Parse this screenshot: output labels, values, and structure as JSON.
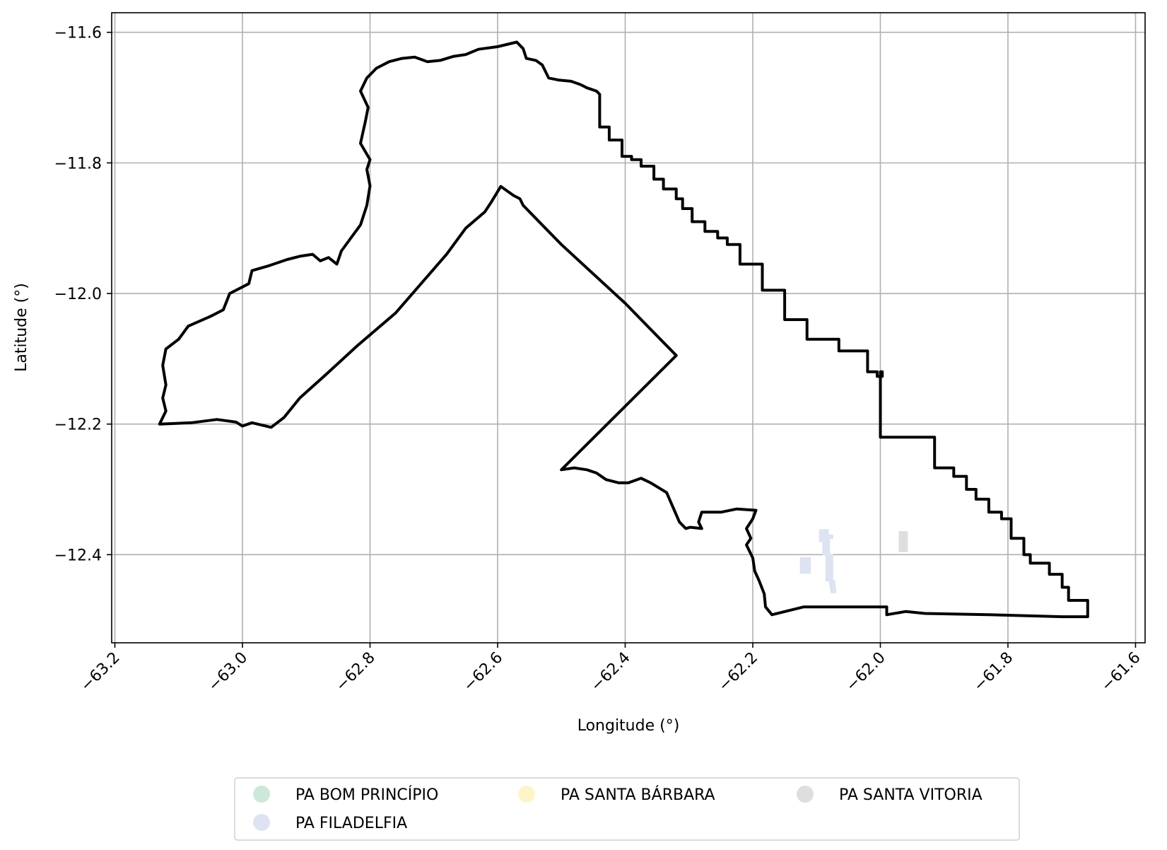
{
  "chart_data": {
    "type": "map",
    "xlabel": "Longitude (°)",
    "ylabel": "Latitude (°)",
    "xlim": [
      -63.205,
      -61.585
    ],
    "ylim": [
      -12.535,
      -11.57
    ],
    "grid": true,
    "x_ticks": [
      -63.2,
      -63.0,
      -62.8,
      -62.6,
      -62.4,
      -62.2,
      -62.0,
      -61.8,
      -61.6
    ],
    "x_tick_labels": [
      "−63.2",
      "−63.0",
      "−62.8",
      "−62.6",
      "−62.4",
      "−62.2",
      "−62.0",
      "−61.8",
      "−61.6"
    ],
    "y_ticks": [
      -11.6,
      -11.8,
      -12.0,
      -12.2,
      -12.4
    ],
    "y_tick_labels": [
      "−11.6",
      "−11.8",
      "−12.0",
      "−12.2",
      "−12.4"
    ],
    "boundary_color": "#000000",
    "boundary": [
      [
        -63.13,
        -12.2
      ],
      [
        -63.12,
        -12.18
      ],
      [
        -63.125,
        -12.16
      ],
      [
        -63.12,
        -12.14
      ],
      [
        -63.125,
        -12.11
      ],
      [
        -63.12,
        -12.085
      ],
      [
        -63.1,
        -12.07
      ],
      [
        -63.085,
        -12.05
      ],
      [
        -63.05,
        -12.035
      ],
      [
        -63.03,
        -12.025
      ],
      [
        -63.02,
        -12.0
      ],
      [
        -62.99,
        -11.985
      ],
      [
        -62.985,
        -11.965
      ],
      [
        -62.96,
        -11.958
      ],
      [
        -62.93,
        -11.948
      ],
      [
        -62.91,
        -11.943
      ],
      [
        -62.89,
        -11.94
      ],
      [
        -62.878,
        -11.95
      ],
      [
        -62.865,
        -11.945
      ],
      [
        -62.852,
        -11.955
      ],
      [
        -62.845,
        -11.935
      ],
      [
        -62.83,
        -11.915
      ],
      [
        -62.815,
        -11.895
      ],
      [
        -62.805,
        -11.865
      ],
      [
        -62.8,
        -11.835
      ],
      [
        -62.805,
        -11.81
      ],
      [
        -62.8,
        -11.795
      ],
      [
        -62.815,
        -11.77
      ],
      [
        -62.807,
        -11.735
      ],
      [
        -62.803,
        -11.715
      ],
      [
        -62.815,
        -11.69
      ],
      [
        -62.805,
        -11.67
      ],
      [
        -62.79,
        -11.655
      ],
      [
        -62.77,
        -11.645
      ],
      [
        -62.75,
        -11.64
      ],
      [
        -62.73,
        -11.638
      ],
      [
        -62.71,
        -11.645
      ],
      [
        -62.69,
        -11.643
      ],
      [
        -62.67,
        -11.637
      ],
      [
        -62.65,
        -11.634
      ],
      [
        -62.63,
        -11.626
      ],
      [
        -62.6,
        -11.622
      ],
      [
        -62.57,
        -11.615
      ],
      [
        -62.56,
        -11.625
      ],
      [
        -62.555,
        -11.64
      ],
      [
        -62.54,
        -11.643
      ],
      [
        -62.53,
        -11.65
      ],
      [
        -62.52,
        -11.67
      ],
      [
        -62.505,
        -11.673
      ],
      [
        -62.485,
        -11.675
      ],
      [
        -62.47,
        -11.68
      ],
      [
        -62.46,
        -11.685
      ],
      [
        -62.445,
        -11.69
      ],
      [
        -62.44,
        -11.695
      ],
      [
        -62.44,
        -11.745
      ],
      [
        -62.425,
        -11.745
      ],
      [
        -62.425,
        -11.765
      ],
      [
        -62.405,
        -11.765
      ],
      [
        -62.405,
        -11.79
      ],
      [
        -62.39,
        -11.79
      ],
      [
        -62.39,
        -11.795
      ],
      [
        -62.375,
        -11.795
      ],
      [
        -62.375,
        -11.805
      ],
      [
        -62.355,
        -11.805
      ],
      [
        -62.355,
        -11.825
      ],
      [
        -62.34,
        -11.825
      ],
      [
        -62.34,
        -11.84
      ],
      [
        -62.32,
        -11.84
      ],
      [
        -62.32,
        -11.855
      ],
      [
        -62.31,
        -11.855
      ],
      [
        -62.31,
        -11.87
      ],
      [
        -62.295,
        -11.87
      ],
      [
        -62.295,
        -11.89
      ],
      [
        -62.275,
        -11.89
      ],
      [
        -62.275,
        -11.905
      ],
      [
        -62.255,
        -11.905
      ],
      [
        -62.255,
        -11.915
      ],
      [
        -62.24,
        -11.915
      ],
      [
        -62.24,
        -11.925
      ],
      [
        -62.22,
        -11.925
      ],
      [
        -62.22,
        -11.955
      ],
      [
        -62.185,
        -11.955
      ],
      [
        -62.185,
        -11.995
      ],
      [
        -62.15,
        -11.995
      ],
      [
        -62.15,
        -12.04
      ],
      [
        -62.115,
        -12.04
      ],
      [
        -62.115,
        -12.07
      ],
      [
        -62.065,
        -12.07
      ],
      [
        -62.065,
        -12.088
      ],
      [
        -62.02,
        -12.088
      ],
      [
        -62.02,
        -12.12
      ],
      [
        -62.005,
        -12.12
      ],
      [
        -62.005,
        -12.127
      ],
      [
        -61.997,
        -12.127
      ],
      [
        -61.997,
        -12.12
      ],
      [
        -62.0,
        -12.12
      ],
      [
        -62.0,
        -12.22
      ],
      [
        -61.915,
        -12.22
      ],
      [
        -61.915,
        -12.267
      ],
      [
        -61.885,
        -12.267
      ],
      [
        -61.885,
        -12.28
      ],
      [
        -61.865,
        -12.28
      ],
      [
        -61.865,
        -12.3
      ],
      [
        -61.85,
        -12.3
      ],
      [
        -61.85,
        -12.315
      ],
      [
        -61.83,
        -12.315
      ],
      [
        -61.83,
        -12.335
      ],
      [
        -61.81,
        -12.335
      ],
      [
        -61.81,
        -12.345
      ],
      [
        -61.795,
        -12.345
      ],
      [
        -61.795,
        -12.375
      ],
      [
        -61.775,
        -12.375
      ],
      [
        -61.775,
        -12.4
      ],
      [
        -61.765,
        -12.4
      ],
      [
        -61.765,
        -12.413
      ],
      [
        -61.735,
        -12.413
      ],
      [
        -61.735,
        -12.43
      ],
      [
        -61.715,
        -12.43
      ],
      [
        -61.715,
        -12.45
      ],
      [
        -61.705,
        -12.45
      ],
      [
        -61.705,
        -12.47
      ],
      [
        -61.675,
        -12.47
      ],
      [
        -61.675,
        -12.495
      ],
      [
        -61.715,
        -12.495
      ],
      [
        -61.83,
        -12.492
      ],
      [
        -61.93,
        -12.49
      ],
      [
        -61.96,
        -12.487
      ],
      [
        -61.99,
        -12.492
      ],
      [
        -61.99,
        -12.48
      ],
      [
        -62.12,
        -12.48
      ],
      [
        -62.17,
        -12.492
      ],
      [
        -62.18,
        -12.48
      ],
      [
        -62.182,
        -12.46
      ],
      [
        -62.19,
        -12.44
      ],
      [
        -62.197,
        -12.425
      ],
      [
        -62.2,
        -12.405
      ],
      [
        -62.21,
        -12.385
      ],
      [
        -62.203,
        -12.375
      ],
      [
        -62.21,
        -12.36
      ],
      [
        -62.2,
        -12.345
      ],
      [
        -62.195,
        -12.332
      ],
      [
        -62.225,
        -12.33
      ],
      [
        -62.25,
        -12.335
      ],
      [
        -62.28,
        -12.335
      ],
      [
        -62.285,
        -12.35
      ],
      [
        -62.28,
        -12.36
      ],
      [
        -62.298,
        -12.358
      ],
      [
        -62.305,
        -12.36
      ],
      [
        -62.315,
        -12.35
      ],
      [
        -62.335,
        -12.305
      ],
      [
        -62.36,
        -12.29
      ],
      [
        -62.375,
        -12.283
      ],
      [
        -62.395,
        -12.29
      ],
      [
        -62.41,
        -12.29
      ],
      [
        -62.43,
        -12.285
      ],
      [
        -62.445,
        -12.275
      ],
      [
        -62.46,
        -12.27
      ],
      [
        -62.48,
        -12.267
      ],
      [
        -62.5,
        -12.27
      ],
      [
        -62.32,
        -12.095
      ],
      [
        -62.4,
        -12.015
      ],
      [
        -62.5,
        -11.925
      ],
      [
        -62.56,
        -11.865
      ],
      [
        -62.565,
        -11.855
      ],
      [
        -62.575,
        -11.85
      ],
      [
        -62.595,
        -11.836
      ],
      [
        -62.61,
        -11.86
      ],
      [
        -62.62,
        -11.875
      ],
      [
        -62.65,
        -11.9
      ],
      [
        -62.68,
        -11.94
      ],
      [
        -62.76,
        -12.03
      ],
      [
        -62.82,
        -12.08
      ],
      [
        -62.87,
        -12.125
      ],
      [
        -62.91,
        -12.16
      ],
      [
        -62.935,
        -12.19
      ],
      [
        -62.955,
        -12.205
      ],
      [
        -62.985,
        -12.198
      ],
      [
        -63.0,
        -12.203
      ],
      [
        -63.01,
        -12.197
      ],
      [
        -63.04,
        -12.193
      ],
      [
        -63.08,
        -12.198
      ],
      [
        -63.13,
        -12.2
      ]
    ],
    "series": [
      {
        "name": "PA BOM PRINCÍPIO",
        "color": "#cbe8d8",
        "polygons": []
      },
      {
        "name": "PA FILADELFIA",
        "color": "#dde3f0",
        "polygons": [
          [
            [
              -62.095,
              -12.362
            ],
            [
              -62.082,
              -12.362
            ],
            [
              -62.082,
              -12.37
            ],
            [
              -62.075,
              -12.37
            ],
            [
              -62.075,
              -12.375
            ],
            [
              -62.08,
              -12.375
            ],
            [
              -62.08,
              -12.4
            ],
            [
              -62.09,
              -12.4
            ],
            [
              -62.09,
              -12.38
            ],
            [
              -62.095,
              -12.38
            ]
          ],
          [
            [
              -62.125,
              -12.405
            ],
            [
              -62.11,
              -12.405
            ],
            [
              -62.11,
              -12.428
            ],
            [
              -62.125,
              -12.428
            ]
          ],
          [
            [
              -62.085,
              -12.4
            ],
            [
              -62.075,
              -12.4
            ],
            [
              -62.075,
              -12.44
            ],
            [
              -62.085,
              -12.44
            ]
          ],
          [
            [
              -62.08,
              -12.44
            ],
            [
              -62.072,
              -12.44
            ],
            [
              -62.07,
              -12.458
            ],
            [
              -62.077,
              -12.458
            ]
          ]
        ]
      },
      {
        "name": "PA SANTA BÁRBARA",
        "color": "#fdf5c8",
        "polygons": []
      },
      {
        "name": "PA SANTA VITORIA",
        "color": "#dedede",
        "polygons": [
          [
            [
              -61.97,
              -12.365
            ],
            [
              -61.958,
              -12.365
            ],
            [
              -61.958,
              -12.395
            ],
            [
              -61.97,
              -12.395
            ]
          ]
        ]
      }
    ],
    "legend": {
      "placement": "bottom-center",
      "items": [
        "PA BOM PRINCÍPIO",
        "PA SANTA BÁRBARA",
        "PA SANTA VITORIA",
        "PA FILADELFIA"
      ]
    }
  }
}
